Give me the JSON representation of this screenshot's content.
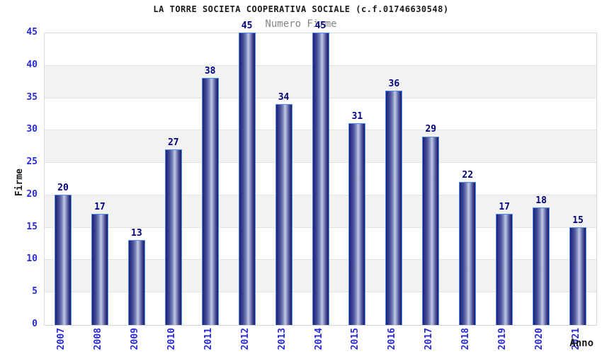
{
  "chart_data": {
    "type": "bar",
    "title": "LA TORRE SOCIETA COOPERATIVA SOCIALE (c.f.01746630548)",
    "subtitle": "Numero Firme",
    "xlabel": "Anno",
    "ylabel": "Firme",
    "categories": [
      "2007",
      "2008",
      "2009",
      "2010",
      "2011",
      "2012",
      "2013",
      "2014",
      "2015",
      "2016",
      "2017",
      "2018",
      "2019",
      "2020",
      "2021"
    ],
    "values": [
      20,
      17,
      13,
      27,
      38,
      45,
      34,
      45,
      31,
      36,
      29,
      22,
      17,
      18,
      15
    ],
    "ylim": [
      0,
      45
    ],
    "yticks": [
      0,
      5,
      10,
      15,
      20,
      25,
      30,
      35,
      40,
      45
    ],
    "grid": "alternating horizontal bands, gray on 5-10/15-20/25-30/35-40",
    "legend_position": "none",
    "colors": {
      "bar_edge_dark": "#1f1f6e",
      "bar_highlight": "#c2c8e5",
      "bar_border": "#4d8cf0",
      "value_label": "#00007d",
      "tick_label": "#2a2ad4",
      "band_gray": "#f2f2f2",
      "band_white": "#ffffff",
      "plot_border": "#d9d9d9",
      "title_color": "#1a1a1a",
      "subtitle_color": "#848484",
      "axis_label_color": "#1a1a1a"
    }
  }
}
